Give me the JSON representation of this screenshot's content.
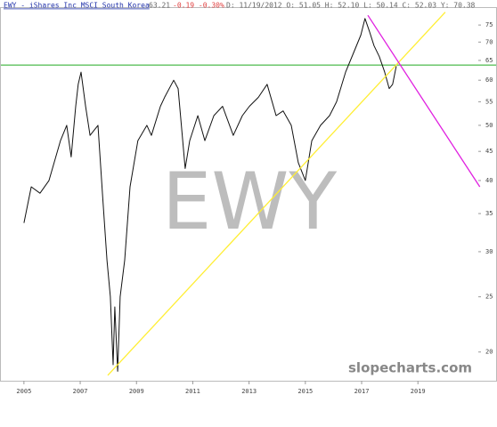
{
  "header": {
    "title": "EWY - iShares Inc MSCI South Korea",
    "last": "63.21",
    "change": "-0.19 -0.30%",
    "details": "D: 11/19/2012 O: 51.05 H: 52.10 L: 50.14 C: 52.03 Y: 70.38"
  },
  "chart_data": {
    "type": "line",
    "watermark": "EWY",
    "brand": "slopecharts.com",
    "log_scale": true,
    "xlim": [
      2004.15,
      2021.24
    ],
    "xticks": [
      2005,
      2007,
      2009,
      2011,
      2013,
      2015,
      2017,
      2019
    ],
    "ylim": [
      18,
      81.5
    ],
    "yticks": [
      20,
      25,
      30,
      35,
      40,
      45,
      50,
      55,
      60,
      65,
      70,
      75
    ],
    "series": [
      {
        "name": "EWY",
        "color": "#111111",
        "x": [
          2005.0,
          2005.26,
          2005.57,
          2005.89,
          2006.3,
          2006.52,
          2006.68,
          2006.84,
          2006.93,
          2007.03,
          2007.19,
          2007.35,
          2007.63,
          2007.79,
          2007.95,
          2008.07,
          2008.17,
          2008.23,
          2008.33,
          2008.42,
          2008.58,
          2008.77,
          2009.05,
          2009.37,
          2009.53,
          2009.85,
          2010.0,
          2010.32,
          2010.48,
          2010.73,
          2010.89,
          2011.18,
          2011.43,
          2011.75,
          2012.06,
          2012.44,
          2012.76,
          2013.01,
          2013.33,
          2013.64,
          2013.96,
          2014.21,
          2014.5,
          2014.75,
          2015.0,
          2015.23,
          2015.54,
          2015.86,
          2016.11,
          2016.43,
          2016.71,
          2016.97,
          2017.12,
          2017.28,
          2017.44,
          2017.63,
          2017.82,
          2017.98,
          2018.1,
          2018.23
        ],
        "values": [
          33.7,
          39,
          38,
          40,
          47,
          50,
          44,
          54,
          59,
          62,
          54,
          48,
          50,
          38,
          29,
          25,
          19,
          24,
          18.5,
          25,
          29,
          39,
          47,
          50,
          48,
          54,
          56,
          60,
          58,
          42,
          47,
          52,
          47,
          52,
          54,
          48,
          52,
          54,
          56,
          59,
          52,
          53,
          50,
          43,
          40,
          47,
          50,
          52,
          55,
          62,
          67,
          72,
          77,
          73,
          69,
          66,
          62,
          58,
          59,
          63.5
        ]
      }
    ],
    "hlines": [
      {
        "color": "#22aa22",
        "value": 63.8
      }
    ],
    "trendlines": [
      {
        "color": "#ffee33",
        "x": [
          2007.98,
          2019.97
        ],
        "values": [
          18.2,
          79
        ]
      },
      {
        "color": "#e020e0",
        "x": [
          2017.22,
          2021.2
        ],
        "values": [
          78,
          39
        ]
      }
    ]
  }
}
